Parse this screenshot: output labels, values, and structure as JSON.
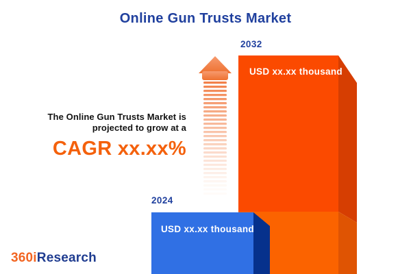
{
  "header": {
    "title": "Online Gun Trusts Market"
  },
  "promo": {
    "line1": "The Online Gun Trusts Market is",
    "line2": "projected to grow at a",
    "cagr": "CAGR xx.xx%"
  },
  "bars": [
    {
      "year": "2024",
      "value_label": "USD xx.xx thousand"
    },
    {
      "year": "2032",
      "value_label": "USD xx.xx thousand"
    }
  ],
  "logo": {
    "part1": "360i",
    "part2": "Research"
  },
  "icons": [
    {
      "name": "growth-arrow-icon",
      "glyph": "upward arrow with fading stripes"
    }
  ],
  "colors": {
    "title_blue": "#20409E",
    "text_black": "#121212",
    "cagr_orange": "#F4610C",
    "bar_2024_front": "#3070E4",
    "bar_2024_side": "#06318C",
    "bar_2032_front_top": "#FB4A00",
    "bar_2032_front_bottom": "#FB6300",
    "bar_2032_side_top": "#D63E02",
    "bar_2032_side_bottom": "#DF5403",
    "arrow_orange": "#F2814A",
    "background": "#FFFFFF"
  },
  "chart_data": {
    "type": "bar",
    "categories": [
      "2024",
      "2032"
    ],
    "values": [
      "xx.xx",
      "xx.xx"
    ],
    "unit": "USD thousand",
    "value_labels": [
      "USD xx.xx thousand",
      "USD xx.xx thousand"
    ],
    "title": "Online Gun Trusts Market",
    "xlabel": "",
    "ylabel": "USD thousand",
    "legend": "off",
    "grid": "off",
    "annotations": [
      "The Online Gun Trusts Market is projected to grow at a",
      "CAGR xx.xx%"
    ],
    "style": "3D infographic bars, blue 2024 bar in front of taller orange 2032 bar, striped growth arrow"
  }
}
